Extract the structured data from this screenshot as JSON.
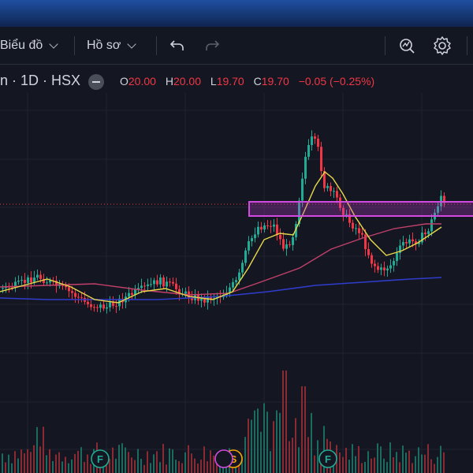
{
  "toolbar": {
    "chart_label": "Biểu đồ",
    "profile_label": "Hồ sơ"
  },
  "legend": {
    "symbol": "n · 1D · HSX",
    "ohlc": [
      {
        "key": "O",
        "value": "20.00"
      },
      {
        "key": "H",
        "value": "20.00"
      },
      {
        "key": "L",
        "value": "19.70"
      },
      {
        "key": "C",
        "value": "19.70"
      }
    ],
    "change": "−0.05 (−0.25%)"
  },
  "event_markers": [
    {
      "letter": "F",
      "color": "#22ab94"
    },
    {
      "letter": "S",
      "color": "#f7a600"
    },
    {
      "letter": "F",
      "color": "#22ab94"
    }
  ],
  "colors": {
    "up": "#22ab94",
    "down": "#f23645",
    "ma_fast": "#e8d84a",
    "ma_mid": "#c2406a",
    "ma_slow": "#2f3ccc",
    "zone": "#d14be0"
  },
  "icons": [
    "chevron-down-icon",
    "undo-icon",
    "redo-icon",
    "indicator-icon",
    "gear-icon"
  ]
}
